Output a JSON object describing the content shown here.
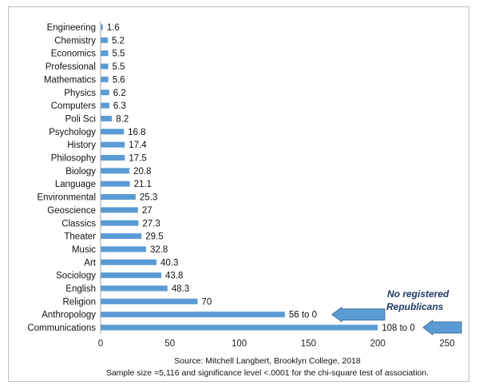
{
  "chart_data": {
    "type": "bar",
    "orientation": "horizontal",
    "categories": [
      "Engineering",
      "Chemistry",
      "Economics",
      "Professional",
      "Mathematics",
      "Physics",
      "Computers",
      "Poli Sci",
      "Psychology",
      "History",
      "Philosophy",
      "Biology",
      "Language",
      "Environmental",
      "Geoscience",
      "Classics",
      "Theater",
      "Music",
      "Art",
      "Sociology",
      "English",
      "Religion",
      "Anthropology",
      "Communications"
    ],
    "values": [
      1.6,
      5.2,
      5.5,
      5.5,
      5.6,
      6.2,
      6.3,
      8.2,
      16.8,
      17.4,
      17.5,
      20.8,
      21.1,
      25.3,
      27,
      27.3,
      29.5,
      32.8,
      40.3,
      43.8,
      48.3,
      70,
      133,
      200
    ],
    "labels": [
      "1.6",
      "5.2",
      "5.5",
      "5.5",
      "5.6",
      "6.2",
      "6.3",
      "8.2",
      "16.8",
      "17.4",
      "17.5",
      "20.8",
      "21.1",
      "25.3",
      "27",
      "27.3",
      "29.5",
      "32.8",
      "40.3",
      "43.8",
      "48.3",
      "70",
      "56 to 0",
      "108 to 0"
    ],
    "xlim": [
      0,
      250
    ],
    "xticks": [
      0,
      50,
      100,
      150,
      200,
      250
    ],
    "grid": false,
    "legend": "none",
    "bar_color": "#5b9bd5",
    "source_line1": "Source: Mitchell  Langbert, Brooklyn College, 2018",
    "source_line2": "Sample size =5,116 and significance level <.0001 for the chi-square test of association.",
    "annotation": {
      "line1": "No registered",
      "line2": "Republicans",
      "arrow_color": "#5b9bd5",
      "arrow_targets": [
        "Anthropology",
        "Communications"
      ]
    }
  }
}
